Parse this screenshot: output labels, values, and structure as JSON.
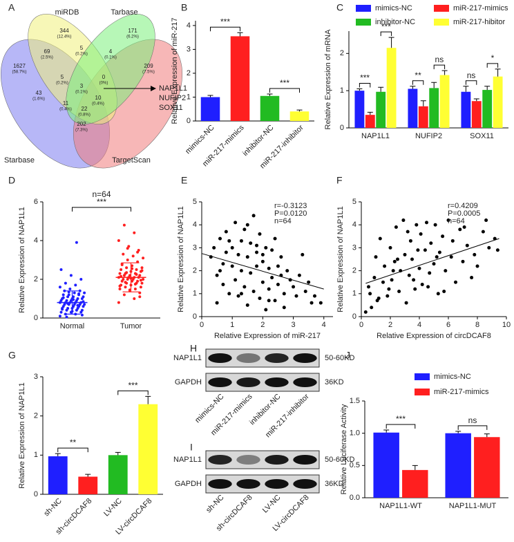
{
  "venn": {
    "panel": "A",
    "sets": [
      "miRDB",
      "Tarbase",
      "Starbase",
      "TargetScan"
    ],
    "regions": [
      {
        "count": 344,
        "percent": "(12.4%)"
      },
      {
        "count": 171,
        "percent": "(6.2%)"
      },
      {
        "count": 1627,
        "percent": "(58.7%)"
      },
      {
        "count": 69,
        "percent": "(2.5%)"
      },
      {
        "count": 5,
        "percent": "(0.2%)"
      },
      {
        "count": 4,
        "percent": "(0.1%)"
      },
      {
        "count": 209,
        "percent": "(7.5%)"
      },
      {
        "count": 5,
        "percent": "(0.2%)"
      },
      {
        "count": 0,
        "percent": "(0%)"
      },
      {
        "count": 43,
        "percent": "(1.6%)"
      },
      {
        "count": 3,
        "percent": "(0.1%)"
      },
      {
        "count": 10,
        "percent": "(0.4%)"
      },
      {
        "count": 11,
        "percent": "(0.4%)"
      },
      {
        "count": 22,
        "percent": "(0.8%)"
      },
      {
        "count": 202,
        "percent": "(7.3%)"
      }
    ],
    "result": [
      "NAP1L1",
      "NUFIP2",
      "SOX11"
    ]
  },
  "chart_data": [
    {
      "panel": "B",
      "type": "bar",
      "categories": [
        "mimics-NC",
        "miR-217-mimics",
        "inhibitor-NC",
        "miR-217-inhibitor"
      ],
      "values": [
        1.0,
        3.55,
        1.05,
        0.4
      ],
      "errors": [
        0.07,
        0.15,
        0.08,
        0.06
      ],
      "colors": [
        "#1f1fff",
        "#ff1f1f",
        "#22bb22",
        "#ffff33"
      ],
      "ylabel": "Relative Expression of miR-217",
      "ylim": [
        0,
        4.2
      ],
      "yticks": [
        0,
        1,
        2,
        3,
        4
      ],
      "rotate_labels": true,
      "significance": [
        {
          "groups": [
            "mimics-NC",
            "miR-217-mimics"
          ],
          "label": "***"
        },
        {
          "groups": [
            "inhibitor-NC",
            "miR-217-inhibitor"
          ],
          "label": "***"
        }
      ]
    },
    {
      "panel": "C",
      "type": "grouped-bar",
      "categories": [
        "NAP1L1",
        "NUFIP2",
        "SOX11"
      ],
      "ylabel": "Relative Expression of mRNA",
      "ylim": [
        0,
        2.6
      ],
      "yticks": [
        0,
        1,
        2
      ],
      "series": [
        {
          "name": "mimics-NC",
          "color": "#1f1fff",
          "values": [
            1.0,
            1.05,
            0.97
          ],
          "errors": [
            0.05,
            0.07,
            0.15
          ]
        },
        {
          "name": "miR-217-mimics",
          "color": "#ff1f1f",
          "values": [
            0.35,
            0.58,
            0.72
          ],
          "errors": [
            0.07,
            0.15,
            0.06
          ]
        },
        {
          "name": "inhibitor-NC",
          "color": "#22bb22",
          "values": [
            0.97,
            1.07,
            1.02
          ],
          "errors": [
            0.12,
            0.15,
            0.1
          ]
        },
        {
          "name": "miR-217-hibitor",
          "color": "#ffff33",
          "values": [
            2.15,
            1.42,
            1.38
          ],
          "errors": [
            0.28,
            0.12,
            0.2
          ]
        }
      ],
      "significance": [
        {
          "category": "NAP1L1",
          "series": [
            "mimics-NC",
            "miR-217-mimics"
          ],
          "label": "***"
        },
        {
          "category": "NAP1L1",
          "series": [
            "inhibitor-NC",
            "miR-217-hibitor"
          ],
          "label": "***"
        },
        {
          "category": "NUFIP2",
          "series": [
            "mimics-NC",
            "miR-217-mimics"
          ],
          "label": "**"
        },
        {
          "category": "NUFIP2",
          "series": [
            "inhibitor-NC",
            "miR-217-hibitor"
          ],
          "label": "ns"
        },
        {
          "category": "SOX11",
          "series": [
            "mimics-NC",
            "miR-217-mimics"
          ],
          "label": "ns"
        },
        {
          "category": "SOX11",
          "series": [
            "inhibitor-NC",
            "miR-217-hibitor"
          ],
          "label": "*"
        }
      ]
    },
    {
      "panel": "D",
      "type": "strip",
      "title": "n=64",
      "categories": [
        "Normal",
        "Tumor"
      ],
      "ylabel": "Relative Expression of NAP1L1",
      "ylim": [
        0,
        6
      ],
      "yticks": [
        0,
        2,
        4,
        6
      ],
      "groups": [
        {
          "color": "#1f1fff",
          "mean": 0.8,
          "sd": 0.6,
          "values": [
            0.1,
            0.2,
            0.2,
            0.3,
            0.3,
            0.3,
            0.4,
            0.4,
            0.4,
            0.5,
            0.5,
            0.5,
            0.5,
            0.6,
            0.6,
            0.6,
            0.6,
            0.7,
            0.7,
            0.7,
            0.7,
            0.7,
            0.8,
            0.8,
            0.8,
            0.8,
            0.8,
            0.9,
            0.9,
            0.9,
            0.9,
            1.0,
            1.0,
            1.0,
            1.0,
            1.1,
            1.1,
            1.1,
            1.2,
            1.2,
            1.2,
            1.3,
            1.3,
            1.4,
            1.4,
            1.5,
            1.6,
            1.7,
            1.8,
            2.0,
            2.2,
            2.5,
            3.9,
            0.05,
            0.15,
            0.35,
            0.45,
            0.65,
            0.75,
            0.85,
            0.95,
            1.05,
            1.25,
            1.35
          ]
        },
        {
          "color": "#ff1f1f",
          "mean": 2.1,
          "sd": 0.75,
          "values": [
            0.8,
            1.0,
            1.2,
            1.3,
            1.4,
            1.5,
            1.5,
            1.6,
            1.6,
            1.7,
            1.7,
            1.8,
            1.8,
            1.8,
            1.9,
            1.9,
            1.9,
            2.0,
            2.0,
            2.0,
            2.0,
            2.1,
            2.1,
            2.1,
            2.1,
            2.2,
            2.2,
            2.2,
            2.3,
            2.3,
            2.3,
            2.4,
            2.4,
            2.5,
            2.5,
            2.6,
            2.6,
            2.7,
            2.8,
            2.9,
            3.0,
            3.1,
            3.2,
            3.3,
            3.5,
            3.7,
            4.0,
            4.4,
            4.8,
            1.1,
            1.45,
            1.65,
            1.75,
            1.85,
            1.95,
            2.05,
            2.15,
            2.25,
            2.35,
            2.45,
            2.55,
            2.75,
            3.4,
            3.6
          ]
        }
      ],
      "significance": [
        {
          "groups": [
            "Normal",
            "Tumor"
          ],
          "label": "***"
        }
      ]
    },
    {
      "panel": "E",
      "type": "scatter",
      "color": "#000000",
      "xlabel": "Relative Expression of miR-217",
      "ylabel": "Relative Expression of NAP1L1",
      "xlim": [
        0,
        4.3
      ],
      "xticks": [
        0,
        1,
        2,
        3,
        4
      ],
      "ylim": [
        0,
        5
      ],
      "yticks": [
        0,
        1,
        2,
        3,
        4,
        5
      ],
      "annotations": [
        "r=-0.3123",
        "P=0.0120",
        "n=64"
      ],
      "trendline": {
        "x": [
          0,
          4
        ],
        "y": [
          2.75,
          1.2
        ]
      },
      "x": [
        0.3,
        0.4,
        0.5,
        0.5,
        0.6,
        0.7,
        0.7,
        0.8,
        0.8,
        0.9,
        1.0,
        1.0,
        1.1,
        1.1,
        1.2,
        1.2,
        1.3,
        1.3,
        1.4,
        1.4,
        1.5,
        1.5,
        1.6,
        1.6,
        1.7,
        1.7,
        1.8,
        1.8,
        1.9,
        1.9,
        2.0,
        2.0,
        2.1,
        2.1,
        2.2,
        2.2,
        2.3,
        2.3,
        2.4,
        2.4,
        2.5,
        2.5,
        2.6,
        2.6,
        2.7,
        2.8,
        2.9,
        3.0,
        3.1,
        3.2,
        3.3,
        3.4,
        3.5,
        3.6,
        3.7,
        3.9,
        0.6,
        0.9,
        1.3,
        1.5,
        1.8,
        2.0,
        2.2,
        2.7
      ],
      "values": [
        2.6,
        3.0,
        1.8,
        0.6,
        3.4,
        2.3,
        1.4,
        3.7,
        2.8,
        1.0,
        3.0,
        2.2,
        4.1,
        1.6,
        2.7,
        0.9,
        3.3,
        2.0,
        3.8,
        1.3,
        2.6,
        0.5,
        3.2,
        1.9,
        4.4,
        1.1,
        2.8,
        2.2,
        3.6,
        0.8,
        2.4,
        1.5,
        3.0,
        0.3,
        2.1,
        1.2,
        2.9,
        1.7,
        3.4,
        0.7,
        2.2,
        1.4,
        1.8,
        2.6,
        1.0,
        2.0,
        1.6,
        1.3,
        0.9,
        1.8,
        2.7,
        1.1,
        1.5,
        0.6,
        0.9,
        0.6,
        2.0,
        3.3,
        1.0,
        4.0,
        3.1,
        2.7,
        0.7,
        0.4
      ]
    },
    {
      "panel": "F",
      "type": "scatter",
      "color": "#000000",
      "xlabel": "Relative Expression of circDCAF8",
      "ylabel": "Relative Expression of NAP1L1",
      "xlim": [
        0,
        10
      ],
      "xticks": [
        0,
        2,
        4,
        6,
        8,
        10
      ],
      "ylim": [
        0,
        5
      ],
      "yticks": [
        0,
        1,
        2,
        3,
        4,
        5
      ],
      "annotations": [
        "r=0.4209",
        "P=0.0005",
        "n=64"
      ],
      "trendline": {
        "x": [
          0.3,
          9.5
        ],
        "y": [
          1.45,
          3.4
        ]
      },
      "x": [
        0.3,
        0.5,
        0.7,
        0.9,
        1.0,
        1.2,
        1.3,
        1.5,
        1.6,
        1.8,
        2.0,
        2.1,
        2.3,
        2.4,
        2.6,
        2.7,
        2.9,
        3.0,
        3.1,
        3.3,
        3.4,
        3.5,
        3.7,
        3.8,
        4.0,
        4.1,
        4.2,
        4.4,
        4.5,
        4.7,
        4.8,
        5.0,
        5.1,
        5.3,
        5.4,
        5.6,
        5.8,
        6.0,
        6.2,
        6.5,
        6.8,
        7.0,
        7.3,
        7.6,
        8.0,
        8.4,
        8.8,
        9.2,
        9.4,
        0.6,
        1.1,
        1.9,
        2.5,
        3.2,
        3.9,
        4.6,
        5.2,
        5.7,
        6.3,
        7.1,
        7.8,
        8.6,
        2.2,
        3.6
      ],
      "values": [
        0.2,
        1.3,
        0.4,
        1.7,
        2.6,
        0.8,
        3.4,
        1.5,
        2.2,
        0.9,
        3.0,
        1.6,
        2.4,
        3.9,
        1.1,
        2.0,
        4.2,
        2.7,
        0.6,
        1.8,
        3.3,
        2.5,
        1.2,
        4.0,
        2.1,
        3.6,
        1.4,
        2.9,
        4.1,
        1.9,
        3.2,
        2.3,
        4.0,
        1.0,
        2.8,
        3.5,
        2.0,
        4.2,
        2.6,
        1.5,
        3.8,
        2.4,
        3.1,
        1.7,
        2.2,
        3.7,
        3.0,
        3.4,
        2.9,
        1.0,
        0.7,
        1.2,
        2.5,
        3.7,
        2.9,
        1.3,
        2.6,
        1.1,
        3.3,
        3.9,
        2.7,
        4.2,
        2.0,
        1.6
      ]
    },
    {
      "panel": "G",
      "type": "bar",
      "categories": [
        "sh-NC",
        "sh-circDCAF8",
        "LV-NC",
        "LV-circDCAF8"
      ],
      "values": [
        0.97,
        0.45,
        1.0,
        2.3
      ],
      "errors": [
        0.07,
        0.06,
        0.07,
        0.2
      ],
      "colors": [
        "#1f1fff",
        "#ff1f1f",
        "#22bb22",
        "#ffff33"
      ],
      "ylabel": "Relative Expression of NAP1L1",
      "ylim": [
        0,
        3
      ],
      "yticks": [
        0,
        1,
        2,
        3
      ],
      "rotate_labels": true,
      "significance": [
        {
          "groups": [
            "sh-NC",
            "sh-circDCAF8"
          ],
          "label": "**"
        },
        {
          "groups": [
            "LV-NC",
            "LV-circDCAF8"
          ],
          "label": "***"
        }
      ]
    },
    {
      "panel": "J",
      "type": "grouped-bar",
      "categories": [
        "NAP1L1-WT",
        "NAP1L1-MUT"
      ],
      "ylabel": "Relative Luciferase Activity",
      "ylim": [
        0,
        1.5
      ],
      "yticks": [
        {
          "value": 0,
          "label": "0.0"
        },
        {
          "value": 0.5,
          "label": "0.5"
        },
        {
          "value": 1,
          "label": "1.0"
        },
        {
          "value": 1.5,
          "label": "1.5"
        }
      ],
      "series": [
        {
          "name": "mimics-NC",
          "color": "#1f1fff",
          "values": [
            1.01,
            1.0
          ],
          "errors": [
            0.04,
            0.03
          ]
        },
        {
          "name": "miR-217-mimics",
          "color": "#ff1f1f",
          "values": [
            0.43,
            0.94
          ],
          "errors": [
            0.07,
            0.05
          ]
        }
      ],
      "significance": [
        {
          "category": "NAP1L1-WT",
          "series": [
            "mimics-NC",
            "miR-217-mimics"
          ],
          "label": "***"
        },
        {
          "category": "NAP1L1-MUT",
          "series": [
            "mimics-NC",
            "miR-217-mimics"
          ],
          "label": "ns"
        }
      ]
    }
  ],
  "blots": [
    {
      "panel": "H",
      "rows": [
        {
          "label": "NAP1L1",
          "size": "50-60KD"
        },
        {
          "label": "GAPDH",
          "size": "36KD"
        }
      ],
      "lanes": [
        "mimics-NC",
        "miR-217-mimics",
        "inhibitor-NC",
        "miR-217-inhibitor"
      ]
    },
    {
      "panel": "I",
      "rows": [
        {
          "label": "NAP1L1",
          "size": "50-60KD"
        },
        {
          "label": "GAPDH",
          "size": "36KD"
        }
      ],
      "lanes": [
        "sh-NC",
        "sh-circDCAF8",
        "LV-NC",
        "LV-circDCAF8"
      ]
    }
  ]
}
